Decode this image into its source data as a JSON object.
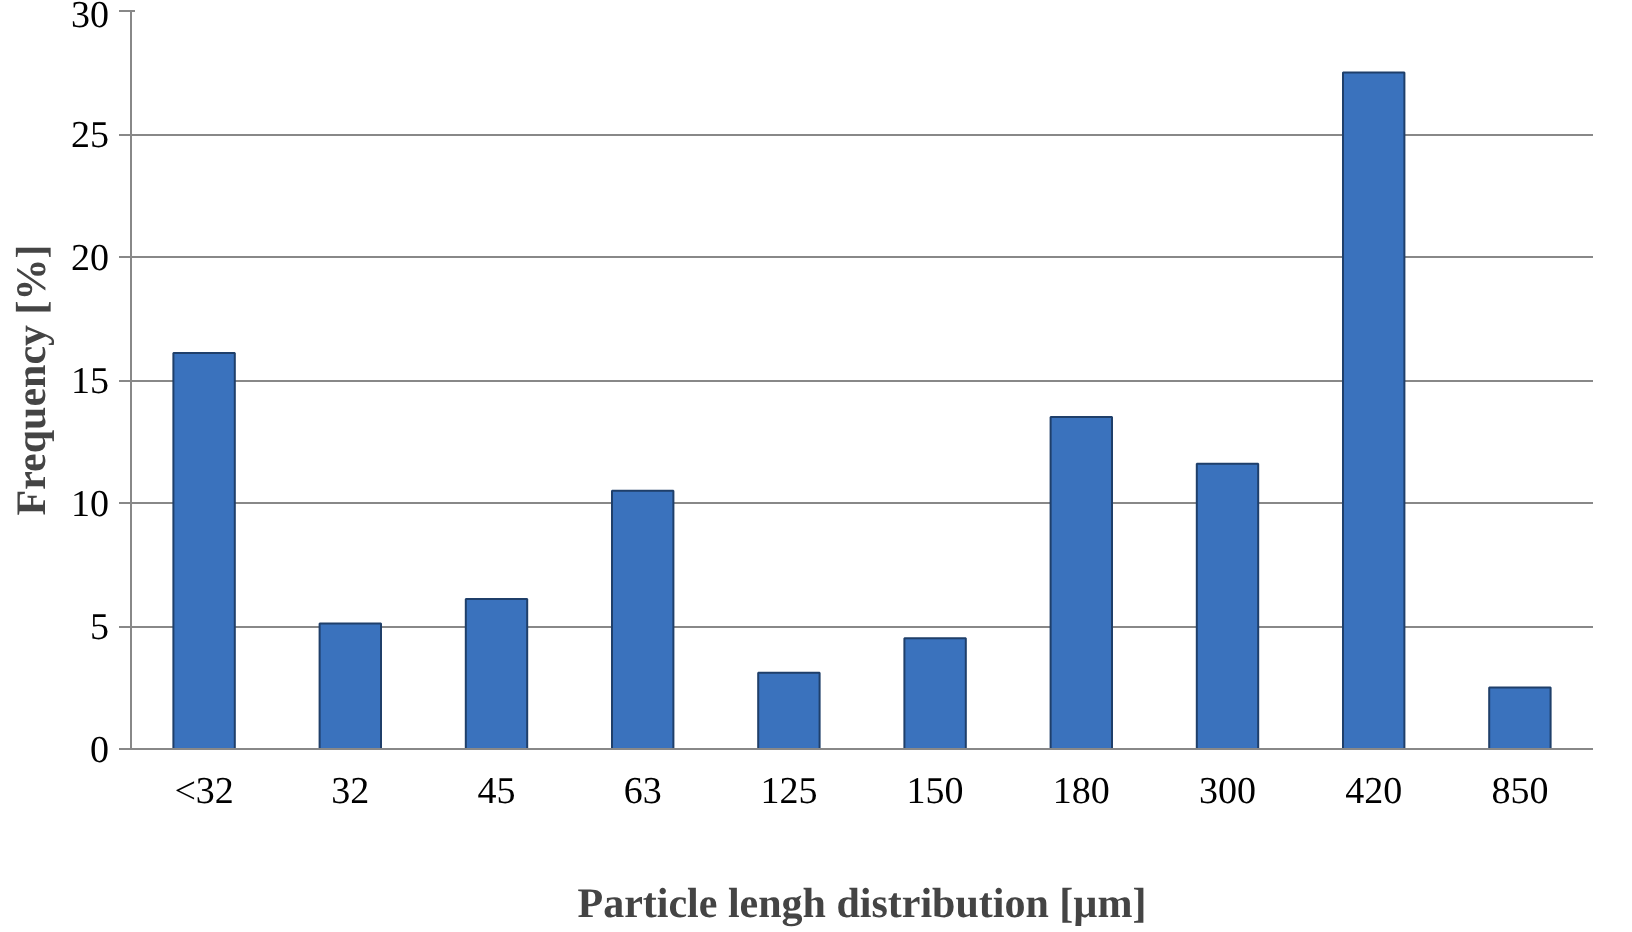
{
  "chart_data": {
    "type": "bar",
    "xlabel": "Particle lengh distribution [µm]",
    "ylabel": "Frequency [%]",
    "categories": [
      "<32",
      "32",
      "45",
      "63",
      "125",
      "150",
      "180",
      "300",
      "420",
      "850"
    ],
    "values": [
      16.1,
      5.1,
      6.1,
      10.5,
      3.1,
      4.5,
      13.5,
      11.6,
      27.5,
      2.5
    ],
    "color": "#3a72bd",
    "ylim": [
      0,
      30
    ],
    "yticks": [
      0,
      5,
      10,
      15,
      20,
      25,
      30
    ],
    "grid": "y"
  }
}
